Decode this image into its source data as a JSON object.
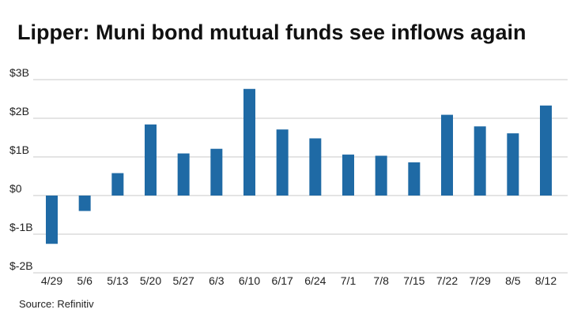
{
  "title": "Lipper: Muni bond mutual funds see inflows again",
  "source": "Source: Refinitiv",
  "chart_data": {
    "type": "bar",
    "categories": [
      "4/29",
      "5/6",
      "5/13",
      "5/20",
      "5/27",
      "6/3",
      "6/10",
      "6/17",
      "6/24",
      "7/1",
      "7/8",
      "7/15",
      "7/22",
      "7/29",
      "8/5",
      "8/12"
    ],
    "values": [
      -1.25,
      -0.4,
      0.58,
      1.84,
      1.09,
      1.21,
      2.76,
      1.71,
      1.48,
      1.06,
      1.03,
      0.86,
      2.09,
      1.79,
      1.61,
      2.33
    ],
    "ylim": [
      -2,
      3
    ],
    "yticks": [
      3,
      2,
      1,
      0,
      -1,
      -2
    ],
    "ytick_labels": [
      "$3B",
      "$2B",
      "$1B",
      "$0",
      "$-1B",
      "$-2B"
    ],
    "xlabel": "",
    "ylabel": "",
    "grid": true,
    "bar_color": "#1f6aa5",
    "grid_color": "#c8c8c8"
  }
}
